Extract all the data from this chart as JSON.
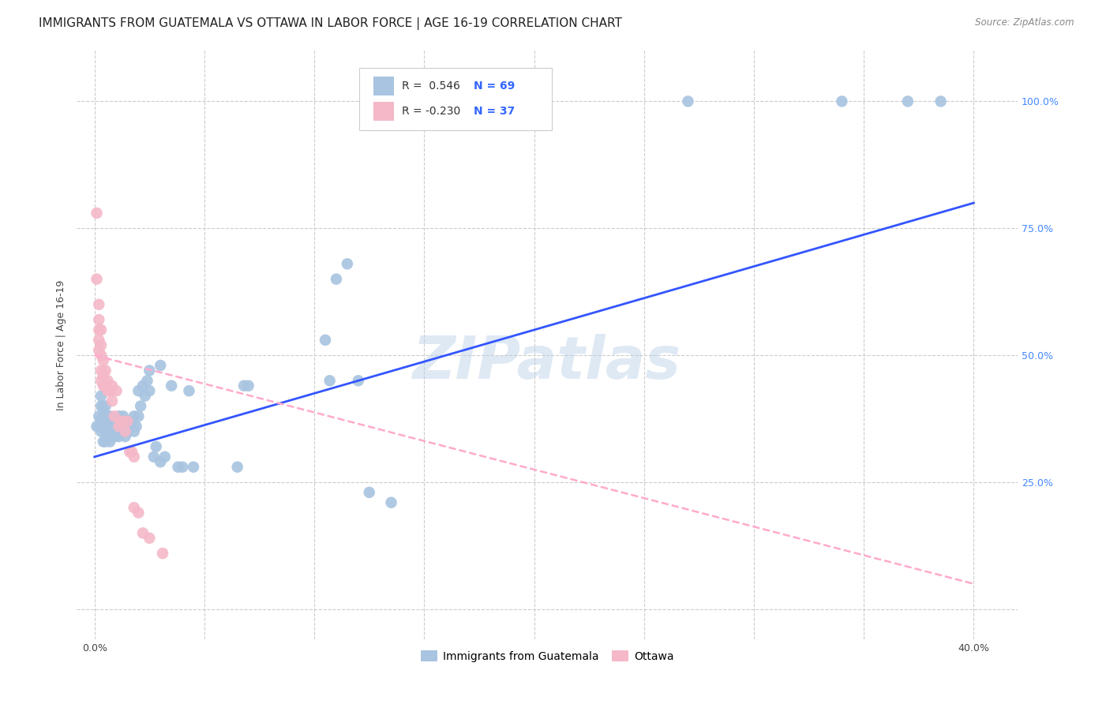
{
  "title": "IMMIGRANTS FROM GUATEMALA VS OTTAWA IN LABOR FORCE | AGE 16-19 CORRELATION CHART",
  "source": "Source: ZipAtlas.com",
  "ylabel": "In Labor Force | Age 16-19",
  "x_ticks": [
    0.0,
    0.05,
    0.1,
    0.15,
    0.2,
    0.25,
    0.3,
    0.35,
    0.4
  ],
  "x_tick_labels": [
    "0.0%",
    "",
    "",
    "",
    "",
    "",
    "",
    "",
    "40.0%"
  ],
  "y_ticks": [
    0.0,
    0.25,
    0.5,
    0.75,
    1.0
  ],
  "y_tick_labels": [
    "",
    "25.0%",
    "50.0%",
    "75.0%",
    "100.0%"
  ],
  "xlim": [
    -0.008,
    0.42
  ],
  "ylim": [
    -0.06,
    1.1
  ],
  "background_color": "#ffffff",
  "grid_color": "#cccccc",
  "watermark": "ZIPatlas",
  "blue_color": "#a8c4e0",
  "pink_color": "#f4b8c8",
  "blue_line_color": "#3355ff",
  "pink_line_color": "#ffaacc",
  "blue_line_x0": 0.0,
  "blue_line_y0": 0.3,
  "blue_line_x1": 0.4,
  "blue_line_y1": 0.8,
  "pink_line_x0": 0.0,
  "pink_line_y0": 0.5,
  "pink_line_x1": 0.4,
  "pink_line_y1": 0.05,
  "guatemala_points": [
    [
      0.001,
      0.36
    ],
    [
      0.002,
      0.36
    ],
    [
      0.002,
      0.38
    ],
    [
      0.003,
      0.35
    ],
    [
      0.003,
      0.37
    ],
    [
      0.003,
      0.4
    ],
    [
      0.003,
      0.42
    ],
    [
      0.004,
      0.33
    ],
    [
      0.004,
      0.36
    ],
    [
      0.004,
      0.38
    ],
    [
      0.004,
      0.4
    ],
    [
      0.005,
      0.33
    ],
    [
      0.005,
      0.35
    ],
    [
      0.005,
      0.37
    ],
    [
      0.005,
      0.4
    ],
    [
      0.006,
      0.34
    ],
    [
      0.006,
      0.36
    ],
    [
      0.006,
      0.38
    ],
    [
      0.007,
      0.33
    ],
    [
      0.007,
      0.35
    ],
    [
      0.007,
      0.38
    ],
    [
      0.008,
      0.34
    ],
    [
      0.008,
      0.36
    ],
    [
      0.009,
      0.34
    ],
    [
      0.009,
      0.37
    ],
    [
      0.01,
      0.35
    ],
    [
      0.01,
      0.37
    ],
    [
      0.011,
      0.34
    ],
    [
      0.011,
      0.38
    ],
    [
      0.012,
      0.36
    ],
    [
      0.013,
      0.35
    ],
    [
      0.013,
      0.38
    ],
    [
      0.014,
      0.34
    ],
    [
      0.014,
      0.37
    ],
    [
      0.015,
      0.35
    ],
    [
      0.016,
      0.36
    ],
    [
      0.017,
      0.37
    ],
    [
      0.018,
      0.35
    ],
    [
      0.018,
      0.38
    ],
    [
      0.019,
      0.36
    ],
    [
      0.02,
      0.38
    ],
    [
      0.02,
      0.43
    ],
    [
      0.021,
      0.4
    ],
    [
      0.022,
      0.44
    ],
    [
      0.023,
      0.42
    ],
    [
      0.024,
      0.45
    ],
    [
      0.025,
      0.43
    ],
    [
      0.025,
      0.47
    ],
    [
      0.027,
      0.3
    ],
    [
      0.028,
      0.32
    ],
    [
      0.03,
      0.29
    ],
    [
      0.03,
      0.48
    ],
    [
      0.032,
      0.3
    ],
    [
      0.035,
      0.44
    ],
    [
      0.038,
      0.28
    ],
    [
      0.04,
      0.28
    ],
    [
      0.043,
      0.43
    ],
    [
      0.045,
      0.28
    ],
    [
      0.065,
      0.28
    ],
    [
      0.068,
      0.44
    ],
    [
      0.07,
      0.44
    ],
    [
      0.105,
      0.53
    ],
    [
      0.107,
      0.45
    ],
    [
      0.11,
      0.65
    ],
    [
      0.115,
      0.68
    ],
    [
      0.12,
      0.45
    ],
    [
      0.125,
      0.23
    ],
    [
      0.135,
      0.21
    ],
    [
      0.27,
      1.0
    ],
    [
      0.34,
      1.0
    ],
    [
      0.37,
      1.0
    ],
    [
      0.385,
      1.0
    ]
  ],
  "ottawa_points": [
    [
      0.001,
      0.78
    ],
    [
      0.001,
      0.65
    ],
    [
      0.002,
      0.6
    ],
    [
      0.002,
      0.57
    ],
    [
      0.002,
      0.55
    ],
    [
      0.002,
      0.53
    ],
    [
      0.002,
      0.51
    ],
    [
      0.003,
      0.55
    ],
    [
      0.003,
      0.52
    ],
    [
      0.003,
      0.5
    ],
    [
      0.003,
      0.47
    ],
    [
      0.003,
      0.45
    ],
    [
      0.004,
      0.49
    ],
    [
      0.004,
      0.46
    ],
    [
      0.004,
      0.44
    ],
    [
      0.005,
      0.47
    ],
    [
      0.005,
      0.44
    ],
    [
      0.006,
      0.45
    ],
    [
      0.006,
      0.43
    ],
    [
      0.007,
      0.43
    ],
    [
      0.008,
      0.41
    ],
    [
      0.008,
      0.44
    ],
    [
      0.009,
      0.38
    ],
    [
      0.01,
      0.43
    ],
    [
      0.011,
      0.36
    ],
    [
      0.012,
      0.37
    ],
    [
      0.013,
      0.37
    ],
    [
      0.014,
      0.35
    ],
    [
      0.015,
      0.37
    ],
    [
      0.016,
      0.31
    ],
    [
      0.017,
      0.31
    ],
    [
      0.018,
      0.3
    ],
    [
      0.018,
      0.2
    ],
    [
      0.02,
      0.19
    ],
    [
      0.022,
      0.15
    ],
    [
      0.025,
      0.14
    ],
    [
      0.031,
      0.11
    ]
  ],
  "title_fontsize": 11,
  "axis_fontsize": 9,
  "tick_fontsize": 9,
  "source_fontsize": 8.5
}
